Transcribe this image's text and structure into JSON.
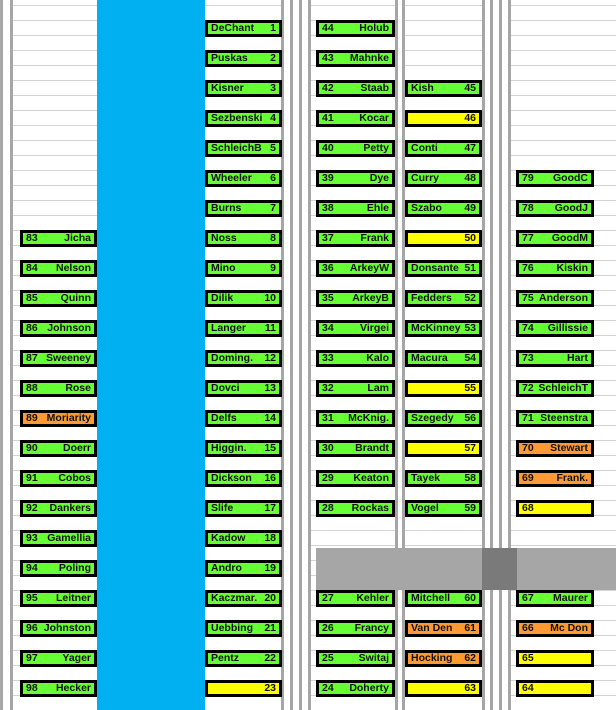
{
  "colors": {
    "green": "#66ff33",
    "yellow": "#ffff00",
    "orange": "#ff9933",
    "blue_column": "#00b0f0",
    "gray_column": "#a6a6a6",
    "row_line": "#d4d4d4"
  },
  "seats": [
    {
      "col": "B",
      "row": 1,
      "a": "DeChant",
      "b": "1",
      "color": "green"
    },
    {
      "col": "B",
      "row": 2,
      "a": "Puskas",
      "b": "2",
      "color": "green"
    },
    {
      "col": "B",
      "row": 3,
      "a": "Kisner",
      "b": "3",
      "color": "green"
    },
    {
      "col": "B",
      "row": 4,
      "a": "Sezbenski",
      "b": "4",
      "color": "green"
    },
    {
      "col": "B",
      "row": 5,
      "a": "SchleichB",
      "b": "5",
      "color": "green"
    },
    {
      "col": "B",
      "row": 6,
      "a": "Wheeler",
      "b": "6",
      "color": "green"
    },
    {
      "col": "B",
      "row": 7,
      "a": "Burns",
      "b": "7",
      "color": "green"
    },
    {
      "col": "B",
      "row": 8,
      "a": "Noss",
      "b": "8",
      "color": "green"
    },
    {
      "col": "B",
      "row": 9,
      "a": "Mino",
      "b": "9",
      "color": "green"
    },
    {
      "col": "B",
      "row": 10,
      "a": "Dilik",
      "b": "10",
      "color": "green"
    },
    {
      "col": "B",
      "row": 11,
      "a": "Langer",
      "b": "11",
      "color": "green"
    },
    {
      "col": "B",
      "row": 12,
      "a": "Doming.",
      "b": "12",
      "color": "green"
    },
    {
      "col": "B",
      "row": 13,
      "a": "Dovci",
      "b": "13",
      "color": "green"
    },
    {
      "col": "B",
      "row": 14,
      "a": "Delfs",
      "b": "14",
      "color": "green"
    },
    {
      "col": "B",
      "row": 15,
      "a": "Higgin.",
      "b": "15",
      "color": "green"
    },
    {
      "col": "B",
      "row": 16,
      "a": "Dickson",
      "b": "16",
      "color": "green"
    },
    {
      "col": "B",
      "row": 17,
      "a": "Slife",
      "b": "17",
      "color": "green"
    },
    {
      "col": "B",
      "row": 18,
      "a": "Kadow",
      "b": "18",
      "color": "green"
    },
    {
      "col": "B",
      "row": 19,
      "a": "Andro",
      "b": "19",
      "color": "green"
    },
    {
      "col": "B",
      "row": 20,
      "a": "Kaczmar.",
      "b": "20",
      "color": "green"
    },
    {
      "col": "B",
      "row": 21,
      "a": "Uebbing",
      "b": "21",
      "color": "green"
    },
    {
      "col": "B",
      "row": 22,
      "a": "Pentz",
      "b": "22",
      "color": "green"
    },
    {
      "col": "B",
      "row": 23,
      "a": "",
      "b": "23",
      "color": "yellow"
    },
    {
      "col": "C",
      "row": 1,
      "a": "44",
      "b": "Holub",
      "color": "green"
    },
    {
      "col": "C",
      "row": 2,
      "a": "43",
      "b": "Mahnke",
      "color": "green"
    },
    {
      "col": "C",
      "row": 3,
      "a": "42",
      "b": "Staab",
      "color": "green"
    },
    {
      "col": "C",
      "row": 4,
      "a": "41",
      "b": "Kocar",
      "color": "green"
    },
    {
      "col": "C",
      "row": 5,
      "a": "40",
      "b": "Petty",
      "color": "green"
    },
    {
      "col": "C",
      "row": 6,
      "a": "39",
      "b": "Dye",
      "color": "green"
    },
    {
      "col": "C",
      "row": 7,
      "a": "38",
      "b": "Ehle",
      "color": "green"
    },
    {
      "col": "C",
      "row": 8,
      "a": "37",
      "b": "Frank",
      "color": "green"
    },
    {
      "col": "C",
      "row": 9,
      "a": "36",
      "b": "ArkeyW",
      "color": "green"
    },
    {
      "col": "C",
      "row": 10,
      "a": "35",
      "b": "ArkeyB",
      "color": "green"
    },
    {
      "col": "C",
      "row": 11,
      "a": "34",
      "b": "Virgei",
      "color": "green"
    },
    {
      "col": "C",
      "row": 12,
      "a": "33",
      "b": "Kalo",
      "color": "green"
    },
    {
      "col": "C",
      "row": 13,
      "a": "32",
      "b": "Lam",
      "color": "green"
    },
    {
      "col": "C",
      "row": 14,
      "a": "31",
      "b": "McKnig.",
      "color": "green"
    },
    {
      "col": "C",
      "row": 15,
      "a": "30",
      "b": "Brandt",
      "color": "green"
    },
    {
      "col": "C",
      "row": 16,
      "a": "29",
      "b": "Keaton",
      "color": "green"
    },
    {
      "col": "C",
      "row": 17,
      "a": "28",
      "b": "Rockas",
      "color": "green"
    },
    {
      "col": "C",
      "row": 20,
      "a": "27",
      "b": "Kehler",
      "color": "green"
    },
    {
      "col": "C",
      "row": 21,
      "a": "26",
      "b": "Francy",
      "color": "green"
    },
    {
      "col": "C",
      "row": 22,
      "a": "25",
      "b": "Switaj",
      "color": "green"
    },
    {
      "col": "C",
      "row": 23,
      "a": "24",
      "b": "Doherty",
      "color": "green"
    },
    {
      "col": "D",
      "row": 3,
      "a": "Kish",
      "b": "45",
      "color": "green"
    },
    {
      "col": "D",
      "row": 4,
      "a": "",
      "b": "46",
      "color": "yellow"
    },
    {
      "col": "D",
      "row": 5,
      "a": "Conti",
      "b": "47",
      "color": "green"
    },
    {
      "col": "D",
      "row": 6,
      "a": "Curry",
      "b": "48",
      "color": "green"
    },
    {
      "col": "D",
      "row": 7,
      "a": "Szabo",
      "b": "49",
      "color": "green"
    },
    {
      "col": "D",
      "row": 8,
      "a": "",
      "b": "50",
      "color": "yellow"
    },
    {
      "col": "D",
      "row": 9,
      "a": "Donsante",
      "b": "51",
      "color": "green"
    },
    {
      "col": "D",
      "row": 10,
      "a": "Fedders",
      "b": "52",
      "color": "green"
    },
    {
      "col": "D",
      "row": 11,
      "a": "McKinney",
      "b": "53",
      "color": "green"
    },
    {
      "col": "D",
      "row": 12,
      "a": "Macura",
      "b": "54",
      "color": "green"
    },
    {
      "col": "D",
      "row": 13,
      "a": "",
      "b": "55",
      "color": "yellow"
    },
    {
      "col": "D",
      "row": 14,
      "a": "Szegedy",
      "b": "56",
      "color": "green"
    },
    {
      "col": "D",
      "row": 15,
      "a": "",
      "b": "57",
      "color": "yellow"
    },
    {
      "col": "D",
      "row": 16,
      "a": "Tayek",
      "b": "58",
      "color": "green"
    },
    {
      "col": "D",
      "row": 17,
      "a": "Vogel",
      "b": "59",
      "color": "green"
    },
    {
      "col": "D",
      "row": 20,
      "a": "Mitchell",
      "b": "60",
      "color": "green"
    },
    {
      "col": "D",
      "row": 21,
      "a": "Van Den",
      "b": "61",
      "color": "orange"
    },
    {
      "col": "D",
      "row": 22,
      "a": "Hocking",
      "b": "62",
      "color": "orange"
    },
    {
      "col": "D",
      "row": 23,
      "a": "",
      "b": "63",
      "color": "yellow"
    },
    {
      "col": "E",
      "row": 6,
      "a": "79",
      "b": "GoodC",
      "color": "green"
    },
    {
      "col": "E",
      "row": 7,
      "a": "78",
      "b": "GoodJ",
      "color": "green"
    },
    {
      "col": "E",
      "row": 8,
      "a": "77",
      "b": "GoodM",
      "color": "green"
    },
    {
      "col": "E",
      "row": 9,
      "a": "76",
      "b": "Kiskin",
      "color": "green"
    },
    {
      "col": "E",
      "row": 10,
      "a": "75",
      "b": "Anderson",
      "color": "green"
    },
    {
      "col": "E",
      "row": 11,
      "a": "74",
      "b": "Gillissie",
      "color": "green"
    },
    {
      "col": "E",
      "row": 12,
      "a": "73",
      "b": "Hart",
      "color": "green"
    },
    {
      "col": "E",
      "row": 13,
      "a": "72",
      "b": "SchleichT",
      "color": "green"
    },
    {
      "col": "E",
      "row": 14,
      "a": "71",
      "b": "Steenstra",
      "color": "green"
    },
    {
      "col": "E",
      "row": 15,
      "a": "70",
      "b": "Stewart",
      "color": "orange"
    },
    {
      "col": "E",
      "row": 16,
      "a": "69",
      "b": "Frank.",
      "color": "orange"
    },
    {
      "col": "E",
      "row": 17,
      "a": "68",
      "b": "",
      "color": "yellow"
    },
    {
      "col": "E",
      "row": 20,
      "a": "67",
      "b": "Maurer",
      "color": "green"
    },
    {
      "col": "E",
      "row": 21,
      "a": "66",
      "b": "Mc Don",
      "color": "orange"
    },
    {
      "col": "E",
      "row": 22,
      "a": "65",
      "b": "",
      "color": "yellow"
    },
    {
      "col": "E",
      "row": 23,
      "a": "64",
      "b": "",
      "color": "yellow"
    },
    {
      "col": "A",
      "row": 8,
      "a": "83",
      "b": "Jicha",
      "color": "green"
    },
    {
      "col": "A",
      "row": 9,
      "a": "84",
      "b": "Nelson",
      "color": "green"
    },
    {
      "col": "A",
      "row": 10,
      "a": "85",
      "b": "Quinn",
      "color": "green"
    },
    {
      "col": "A",
      "row": 11,
      "a": "86",
      "b": "Johnson",
      "color": "green"
    },
    {
      "col": "A",
      "row": 12,
      "a": "87",
      "b": "Sweeney",
      "color": "green"
    },
    {
      "col": "A",
      "row": 13,
      "a": "88",
      "b": "Rose",
      "color": "green"
    },
    {
      "col": "A",
      "row": 14,
      "a": "89",
      "b": "Moriarity",
      "color": "orange"
    },
    {
      "col": "A",
      "row": 15,
      "a": "90",
      "b": "Doerr",
      "color": "green"
    },
    {
      "col": "A",
      "row": 16,
      "a": "91",
      "b": "Cobos",
      "color": "green"
    },
    {
      "col": "A",
      "row": 17,
      "a": "92",
      "b": "Dankers",
      "color": "green"
    },
    {
      "col": "A",
      "row": 18,
      "a": "93",
      "b": "Gamellia",
      "color": "green"
    },
    {
      "col": "A",
      "row": 19,
      "a": "94",
      "b": "Poling",
      "color": "green"
    },
    {
      "col": "A",
      "row": 20,
      "a": "95",
      "b": "Leitner",
      "color": "green"
    },
    {
      "col": "A",
      "row": 21,
      "a": "96",
      "b": "Johnston",
      "color": "green"
    },
    {
      "col": "A",
      "row": 22,
      "a": "97",
      "b": "Yager",
      "color": "green"
    },
    {
      "col": "A",
      "row": 23,
      "a": "98",
      "b": "Hecker",
      "color": "green"
    }
  ]
}
